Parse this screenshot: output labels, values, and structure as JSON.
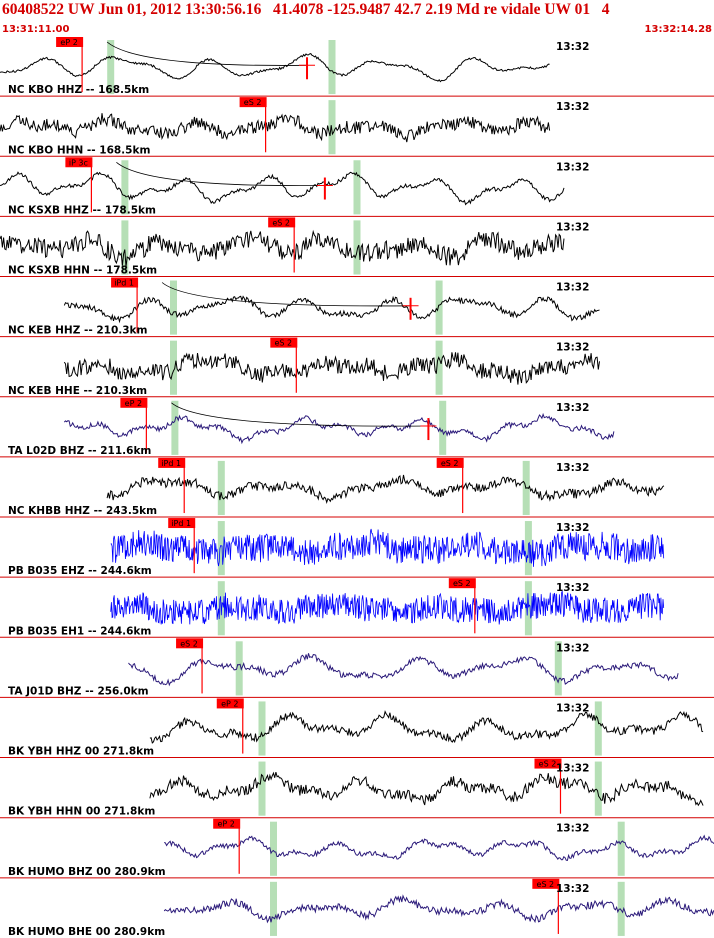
{
  "header": {
    "title": "60408522 UW Jun 01, 2012 13:30:56.16   41.4078 -125.9487 42.7 2.19 Md re vidale UW 01   4",
    "start_time": "13:31:11.00",
    "end_time": "13:32:14.28"
  },
  "colors": {
    "pick": "#ff0000",
    "theory": "#b6dfb6",
    "blue_trace": "#0000ff",
    "purple_trace": "#2b1a7a",
    "black_trace": "#000000",
    "divider": "#d40000"
  },
  "traces": [
    {
      "label": "NC KBO HHZ -- 168.5km",
      "time_mark": "13:32",
      "picks": [
        {
          "text": "eP 2",
          "pos": 0.115
        }
      ],
      "green": [
        0.155,
        0.465
      ],
      "start": 0.0,
      "end": 0.77,
      "color": "black",
      "amp": 14,
      "noise": 0.08,
      "curve": true,
      "cursor": 0.43
    },
    {
      "label": "NC KBO HHN -- 168.5km",
      "time_mark": "13:32",
      "picks": [
        {
          "text": "eS 2",
          "pos": 0.372
        }
      ],
      "green": [
        0.465
      ],
      "start": 0.0,
      "end": 0.77,
      "color": "black",
      "amp": 13,
      "noise": 0.5,
      "curve": false
    },
    {
      "label": "NC KSXB HHZ -- 178.5km",
      "time_mark": "13:32",
      "picks": [
        {
          "text": "iP 3c",
          "pos": 0.128
        }
      ],
      "green": [
        0.175,
        0.5
      ],
      "start": 0.0,
      "end": 0.79,
      "color": "black",
      "amp": 16,
      "noise": 0.12,
      "curve": true,
      "cursor": 0.455
    },
    {
      "label": "NC KSXB HHN -- 178.5km",
      "time_mark": "13:32",
      "picks": [
        {
          "text": "eS 2",
          "pos": 0.412
        }
      ],
      "green": [
        0.175,
        0.5
      ],
      "start": 0.0,
      "end": 0.79,
      "color": "black",
      "amp": 16,
      "noise": 0.6,
      "curve": false
    },
    {
      "label": "NC KEB HHZ -- 210.3km",
      "time_mark": "13:32",
      "picks": [
        {
          "text": "iPd 1",
          "pos": 0.192
        }
      ],
      "green": [
        0.243,
        0.615
      ],
      "start": 0.09,
      "end": 0.84,
      "color": "black",
      "amp": 14,
      "noise": 0.2,
      "curve": true,
      "cursor": 0.575
    },
    {
      "label": "NC KEB HHE -- 210.3km",
      "time_mark": "13:32",
      "picks": [
        {
          "text": "eS 2",
          "pos": 0.415
        }
      ],
      "green": [
        0.243,
        0.615
      ],
      "start": 0.09,
      "end": 0.84,
      "color": "black",
      "amp": 14,
      "noise": 0.6,
      "curve": false
    },
    {
      "label": "TA L02D BHZ -- 211.6km",
      "time_mark": "13:32",
      "picks": [
        {
          "text": "eP 2",
          "pos": 0.205
        }
      ],
      "green": [
        0.245,
        0.62
      ],
      "start": 0.09,
      "end": 0.86,
      "color": "purple",
      "amp": 13,
      "noise": 0.2,
      "curve": true,
      "cursor": 0.6
    },
    {
      "label": "NC KHBB HHZ -- 243.5km",
      "time_mark": "13:32",
      "picks": [
        {
          "text": "iPd 1",
          "pos": 0.258
        },
        {
          "text": "eS 2",
          "pos": 0.648
        }
      ],
      "green": [
        0.31,
        0.737
      ],
      "start": 0.15,
      "end": 0.93,
      "color": "black",
      "amp": 13,
      "noise": 0.35,
      "curve": false
    },
    {
      "label": "PB B035 EHZ -- 244.6km",
      "time_mark": "13:32",
      "picks": [
        {
          "text": "iPd 1",
          "pos": 0.272
        }
      ],
      "green": [
        0.31,
        0.74
      ],
      "start": 0.155,
      "end": 0.93,
      "color": "blue",
      "amp": 14,
      "noise": 1.0,
      "curve": false
    },
    {
      "label": "PB B035 EH1 -- 244.6km",
      "time_mark": "13:32",
      "picks": [
        {
          "text": "eS 2",
          "pos": 0.665
        }
      ],
      "green": [
        0.31,
        0.74
      ],
      "start": 0.155,
      "end": 0.93,
      "color": "blue",
      "amp": 13,
      "noise": 1.0,
      "curve": false
    },
    {
      "label": "TA J01D BHZ -- 256.0km",
      "time_mark": "13:32",
      "picks": [
        {
          "text": "eS 2",
          "pos": 0.283
        }
      ],
      "green": [
        0.335,
        0.782
      ],
      "start": 0.18,
      "end": 0.95,
      "color": "purple",
      "amp": 15,
      "noise": 0.2,
      "curve": false
    },
    {
      "label": "BK YBH HHZ 00 271.8km",
      "time_mark": "13:32",
      "picks": [
        {
          "text": "eP 2",
          "pos": 0.34
        }
      ],
      "green": [
        0.367,
        0.838
      ],
      "start": 0.21,
      "end": 0.985,
      "color": "black",
      "amp": 16,
      "noise": 0.25,
      "curve": false
    },
    {
      "label": "BK YBH HHN 00 271.8km",
      "time_mark": "13:32",
      "picks": [
        {
          "text": "eS 2",
          "pos": 0.785
        }
      ],
      "green": [
        0.367,
        0.838
      ],
      "start": 0.21,
      "end": 0.985,
      "color": "black",
      "amp": 16,
      "noise": 0.35,
      "curve": false
    },
    {
      "label": "BK HUMO BHZ 00 280.9km",
      "time_mark": "13:32",
      "picks": [
        {
          "text": "eP 2",
          "pos": 0.335
        }
      ],
      "green": [
        0.383,
        0.87
      ],
      "start": 0.23,
      "end": 1.0,
      "color": "purple",
      "amp": 12,
      "noise": 0.2,
      "curve": false
    },
    {
      "label": "BK HUMO BHE 00 280.9km",
      "time_mark": "13:32",
      "picks": [
        {
          "text": "eS 2",
          "pos": 0.782
        }
      ],
      "green": [
        0.383,
        0.87
      ],
      "start": 0.23,
      "end": 1.0,
      "color": "purple",
      "amp": 12,
      "noise": 0.3,
      "curve": false
    }
  ]
}
